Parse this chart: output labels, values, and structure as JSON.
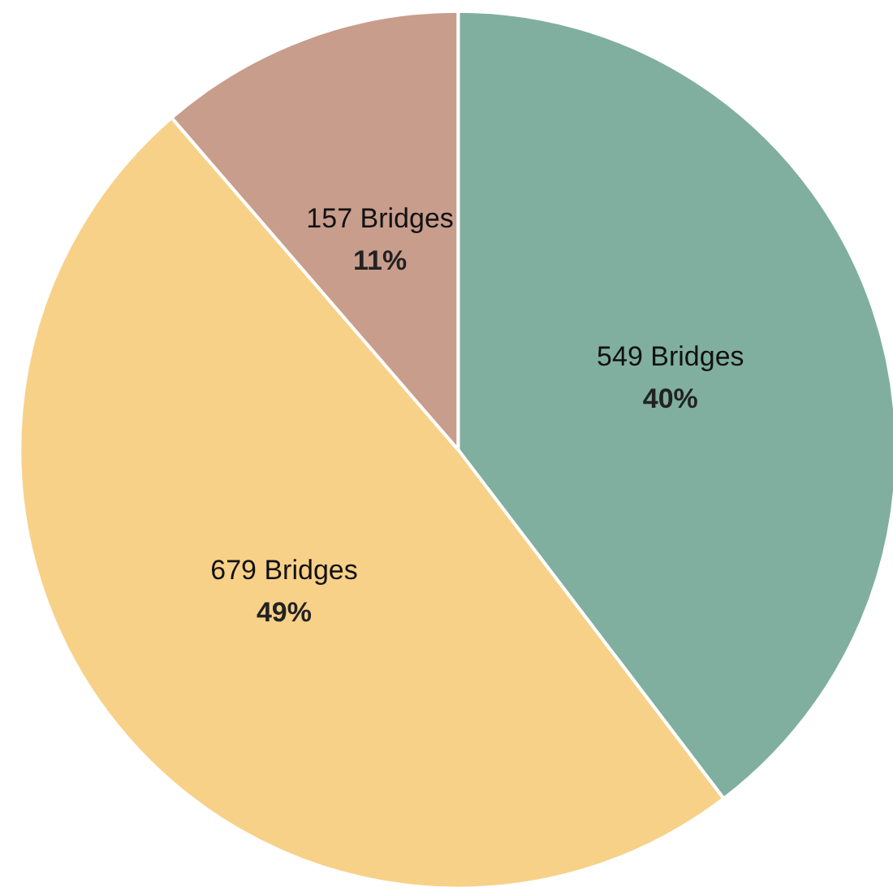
{
  "chart_data": {
    "type": "pie",
    "categories": [
      null,
      null,
      null
    ],
    "values": [
      549,
      679,
      157
    ],
    "colors": [
      "#80afa0",
      "#f8d188",
      "#c89d8c"
    ],
    "value_labels": [
      "549 Bridges\n40%",
      "679 Bridges\n49%",
      "157 Bridges\n11%"
    ]
  }
}
